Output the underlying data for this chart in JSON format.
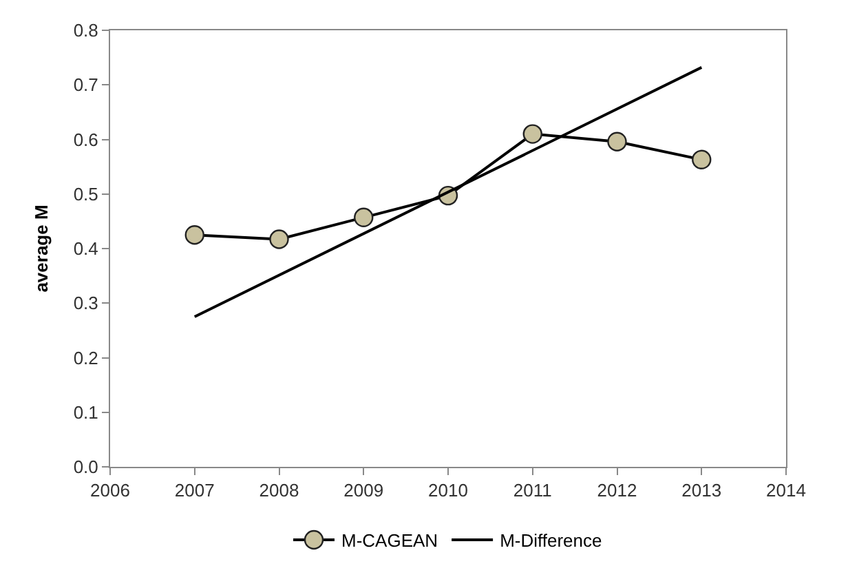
{
  "chart_data": {
    "type": "line",
    "ylabel": "average M",
    "x": [
      2007,
      2008,
      2009,
      2010,
      2011,
      2012,
      2013
    ],
    "series": [
      {
        "name": "M-CAGEAN",
        "color": "#c9c29f",
        "values": [
          0.425,
          0.417,
          0.457,
          0.497,
          0.61,
          0.596,
          0.563
        ],
        "marker": "circle"
      },
      {
        "name": "M-Difference",
        "color": "#000000",
        "x": [
          2007,
          2013
        ],
        "values": [
          0.275,
          0.732
        ],
        "marker": "none"
      }
    ],
    "xlim": [
      2006,
      2014
    ],
    "xticks": [
      2006,
      2007,
      2008,
      2009,
      2010,
      2011,
      2012,
      2013,
      2014
    ],
    "ylim": [
      0,
      0.8
    ],
    "yticks": [
      {
        "value": 0,
        "label": "0.0"
      },
      {
        "value": 0.1,
        "label": "0.1"
      },
      {
        "value": 0.2,
        "label": "0.2"
      },
      {
        "value": 0.3,
        "label": "0.3"
      },
      {
        "value": 0.4,
        "label": "0.4"
      },
      {
        "value": 0.5,
        "label": "0.5"
      },
      {
        "value": 0.6,
        "label": "0.6"
      },
      {
        "value": 0.7,
        "label": "0.7"
      },
      {
        "value": 0.8,
        "label": "0.8"
      }
    ],
    "legend": "bottom",
    "line_style": "solid"
  }
}
